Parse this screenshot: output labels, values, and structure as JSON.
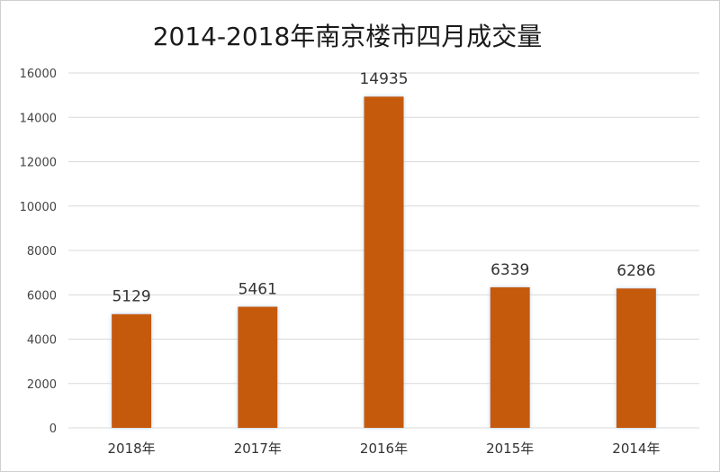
{
  "chart_data": {
    "type": "bar",
    "title": "2014-2018年南京楼市四月成交量",
    "categories": [
      "2018年",
      "2017年",
      "2016年",
      "2015年",
      "2014年"
    ],
    "values": [
      5129,
      5461,
      14935,
      6339,
      6286
    ],
    "data_labels": [
      "5129",
      "5461",
      "14935",
      "6339",
      "6286"
    ],
    "xlabel": "",
    "ylabel": "",
    "ylim": [
      0,
      16000
    ],
    "yticks": [
      0,
      2000,
      4000,
      6000,
      8000,
      10000,
      12000,
      14000,
      16000
    ],
    "ytick_labels": [
      "0",
      "2000",
      "4000",
      "6000",
      "8000",
      "10000",
      "12000",
      "14000",
      "16000"
    ],
    "grid": "horizontal",
    "legend": "none",
    "bar_color": "#c55a11",
    "bar_glow_color": "#bdd7ee",
    "grid_color": "#d9d9d9"
  }
}
